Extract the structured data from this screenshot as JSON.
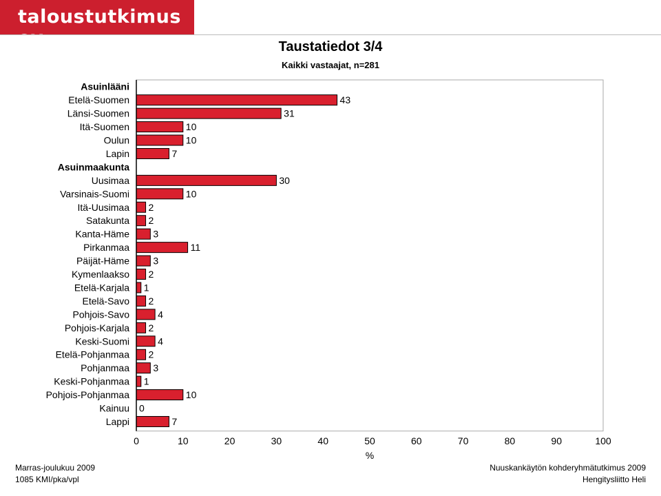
{
  "brand": {
    "logo_text": "taloustutkimus oy",
    "color": "#cc1f2e"
  },
  "title": "Taustatiedot  3/4",
  "subtitle": "Kaikki vastaajat, n=281",
  "footer": {
    "left_line1": "Marras-joulukuu 2009",
    "left_line2": "1085 KMI/pka/vpl",
    "right_line1": "Nuuskankäytön kohderyhmätutkimus 2009",
    "right_line2": "Hengitysliitto Heli"
  },
  "chart_data": {
    "type": "bar",
    "orientation": "horizontal",
    "bar_color": "#d9202e",
    "xlabel": "%",
    "xlim": [
      0,
      100
    ],
    "xticks": [
      0,
      10,
      20,
      30,
      40,
      50,
      60,
      70,
      80,
      90,
      100
    ],
    "rows": [
      {
        "label": "Asuinlääni",
        "header": true
      },
      {
        "label": "Etelä-Suomen",
        "value": 43
      },
      {
        "label": "Länsi-Suomen",
        "value": 31
      },
      {
        "label": "Itä-Suomen",
        "value": 10
      },
      {
        "label": "Oulun",
        "value": 10
      },
      {
        "label": "Lapin",
        "value": 7
      },
      {
        "label": "Asuinmaakunta",
        "header": true
      },
      {
        "label": "Uusimaa",
        "value": 30
      },
      {
        "label": "Varsinais-Suomi",
        "value": 10
      },
      {
        "label": "Itä-Uusimaa",
        "value": 2
      },
      {
        "label": "Satakunta",
        "value": 2
      },
      {
        "label": "Kanta-Häme",
        "value": 3
      },
      {
        "label": "Pirkanmaa",
        "value": 11
      },
      {
        "label": "Päijät-Häme",
        "value": 3
      },
      {
        "label": "Kymenlaakso",
        "value": 2
      },
      {
        "label": "Etelä-Karjala",
        "value": 1
      },
      {
        "label": "Etelä-Savo",
        "value": 2
      },
      {
        "label": "Pohjois-Savo",
        "value": 4
      },
      {
        "label": "Pohjois-Karjala",
        "value": 2
      },
      {
        "label": "Keski-Suomi",
        "value": 4
      },
      {
        "label": "Etelä-Pohjanmaa",
        "value": 2
      },
      {
        "label": "Pohjanmaa",
        "value": 3
      },
      {
        "label": "Keski-Pohjanmaa",
        "value": 1
      },
      {
        "label": "Pohjois-Pohjanmaa",
        "value": 10
      },
      {
        "label": "Kainuu",
        "value": 0
      },
      {
        "label": "Lappi",
        "value": 7
      }
    ]
  }
}
